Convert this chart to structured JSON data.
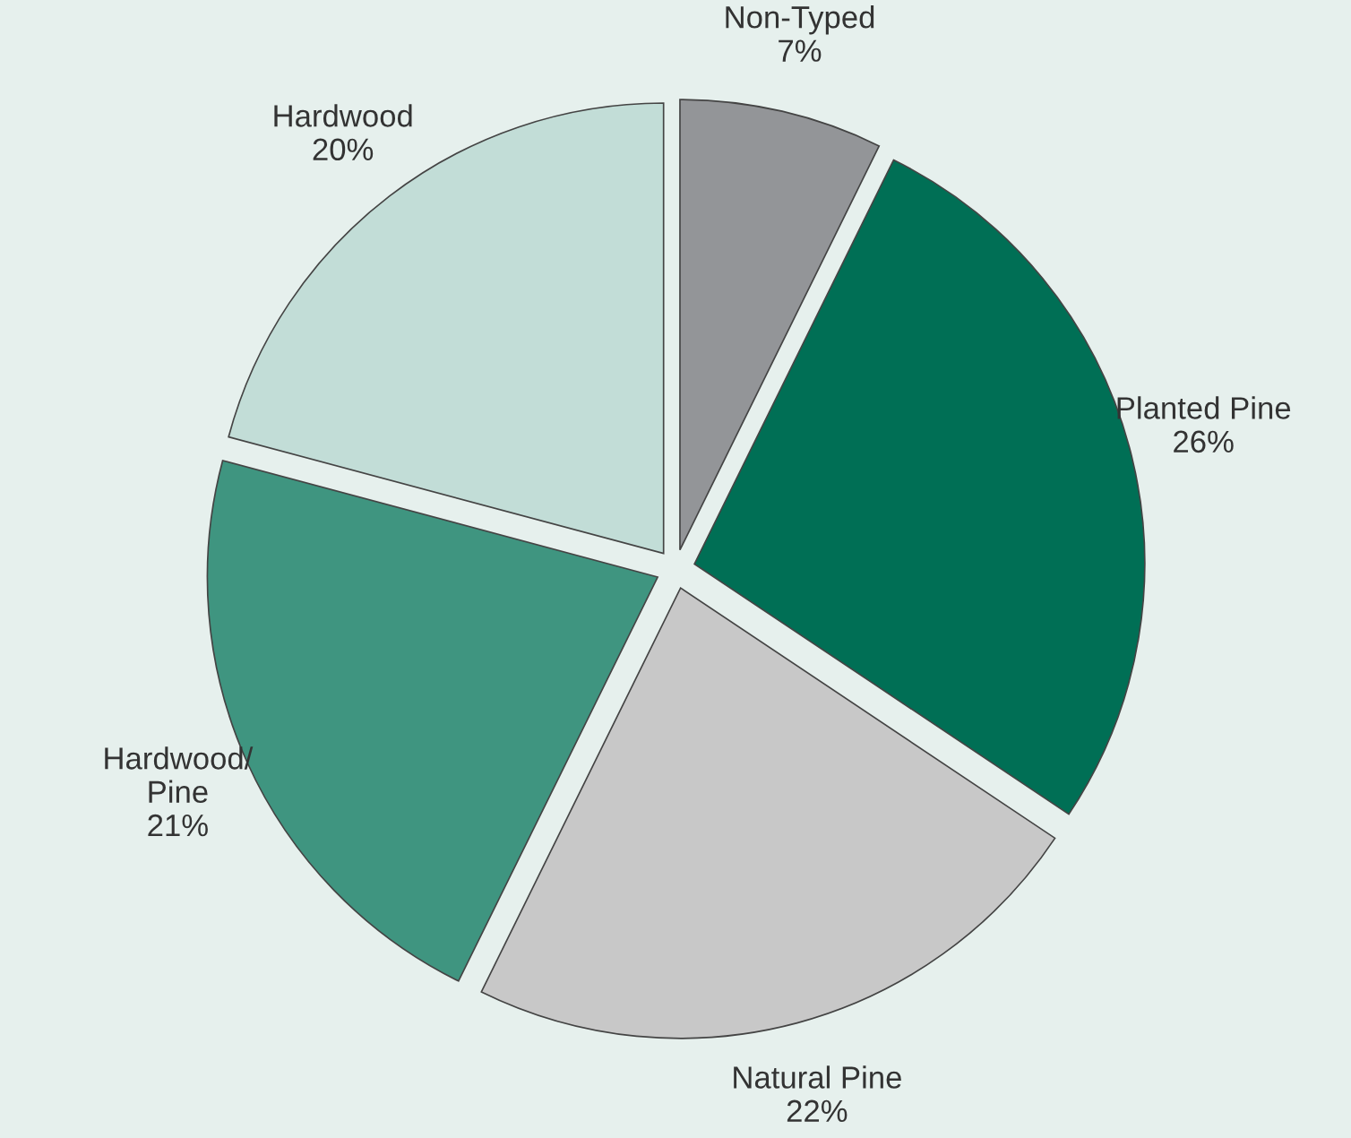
{
  "chart_data": {
    "type": "pie",
    "categories": [
      "Non-Typed",
      "Planted Pine",
      "Natural Pine",
      "Hardwood/\nPine",
      "Hardwood"
    ],
    "values": [
      7,
      26,
      22,
      21,
      20
    ],
    "value_labels": [
      "7%",
      "26%",
      "22%",
      "21%",
      "20%"
    ],
    "colors": [
      "#939598",
      "#006f55",
      "#c8c8c8",
      "#3f9580",
      "#c2ddd7"
    ]
  }
}
